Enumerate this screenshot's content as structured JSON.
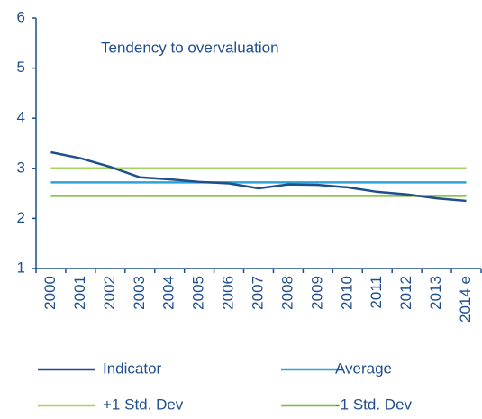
{
  "chart_data": {
    "type": "line",
    "annotation": "Tendency to overvaluation",
    "categories": [
      "2000",
      "2001",
      "2002",
      "2003",
      "2004",
      "2005",
      "2006",
      "2007",
      "2008",
      "2009",
      "2010",
      "2011",
      "2012",
      "2013",
      "2014 e"
    ],
    "series": [
      {
        "name": "Indicator",
        "color": "#1f4e8c",
        "values": [
          3.32,
          3.2,
          3.03,
          2.82,
          2.78,
          2.73,
          2.7,
          2.6,
          2.68,
          2.67,
          2.62,
          2.53,
          2.48,
          2.4,
          2.35
        ]
      },
      {
        "name": "Average",
        "color": "#2aa3d8",
        "values": [
          2.72,
          2.72,
          2.72,
          2.72,
          2.72,
          2.72,
          2.72,
          2.72,
          2.72,
          2.72,
          2.72,
          2.72,
          2.72,
          2.72,
          2.72
        ]
      },
      {
        "name": "+1 Std. Dev",
        "color": "#a2d660",
        "values": [
          3.0,
          3.0,
          3.0,
          3.0,
          3.0,
          3.0,
          3.0,
          3.0,
          3.0,
          3.0,
          3.0,
          3.0,
          3.0,
          3.0,
          3.0
        ]
      },
      {
        "name": "-1 Std. Dev",
        "color": "#7dbb3a",
        "values": [
          2.45,
          2.45,
          2.45,
          2.45,
          2.45,
          2.45,
          2.45,
          2.45,
          2.45,
          2.45,
          2.45,
          2.45,
          2.45,
          2.45,
          2.45
        ]
      }
    ],
    "ylim": [
      1,
      6
    ],
    "yticks": [
      1,
      2,
      3,
      4,
      5,
      6
    ]
  }
}
